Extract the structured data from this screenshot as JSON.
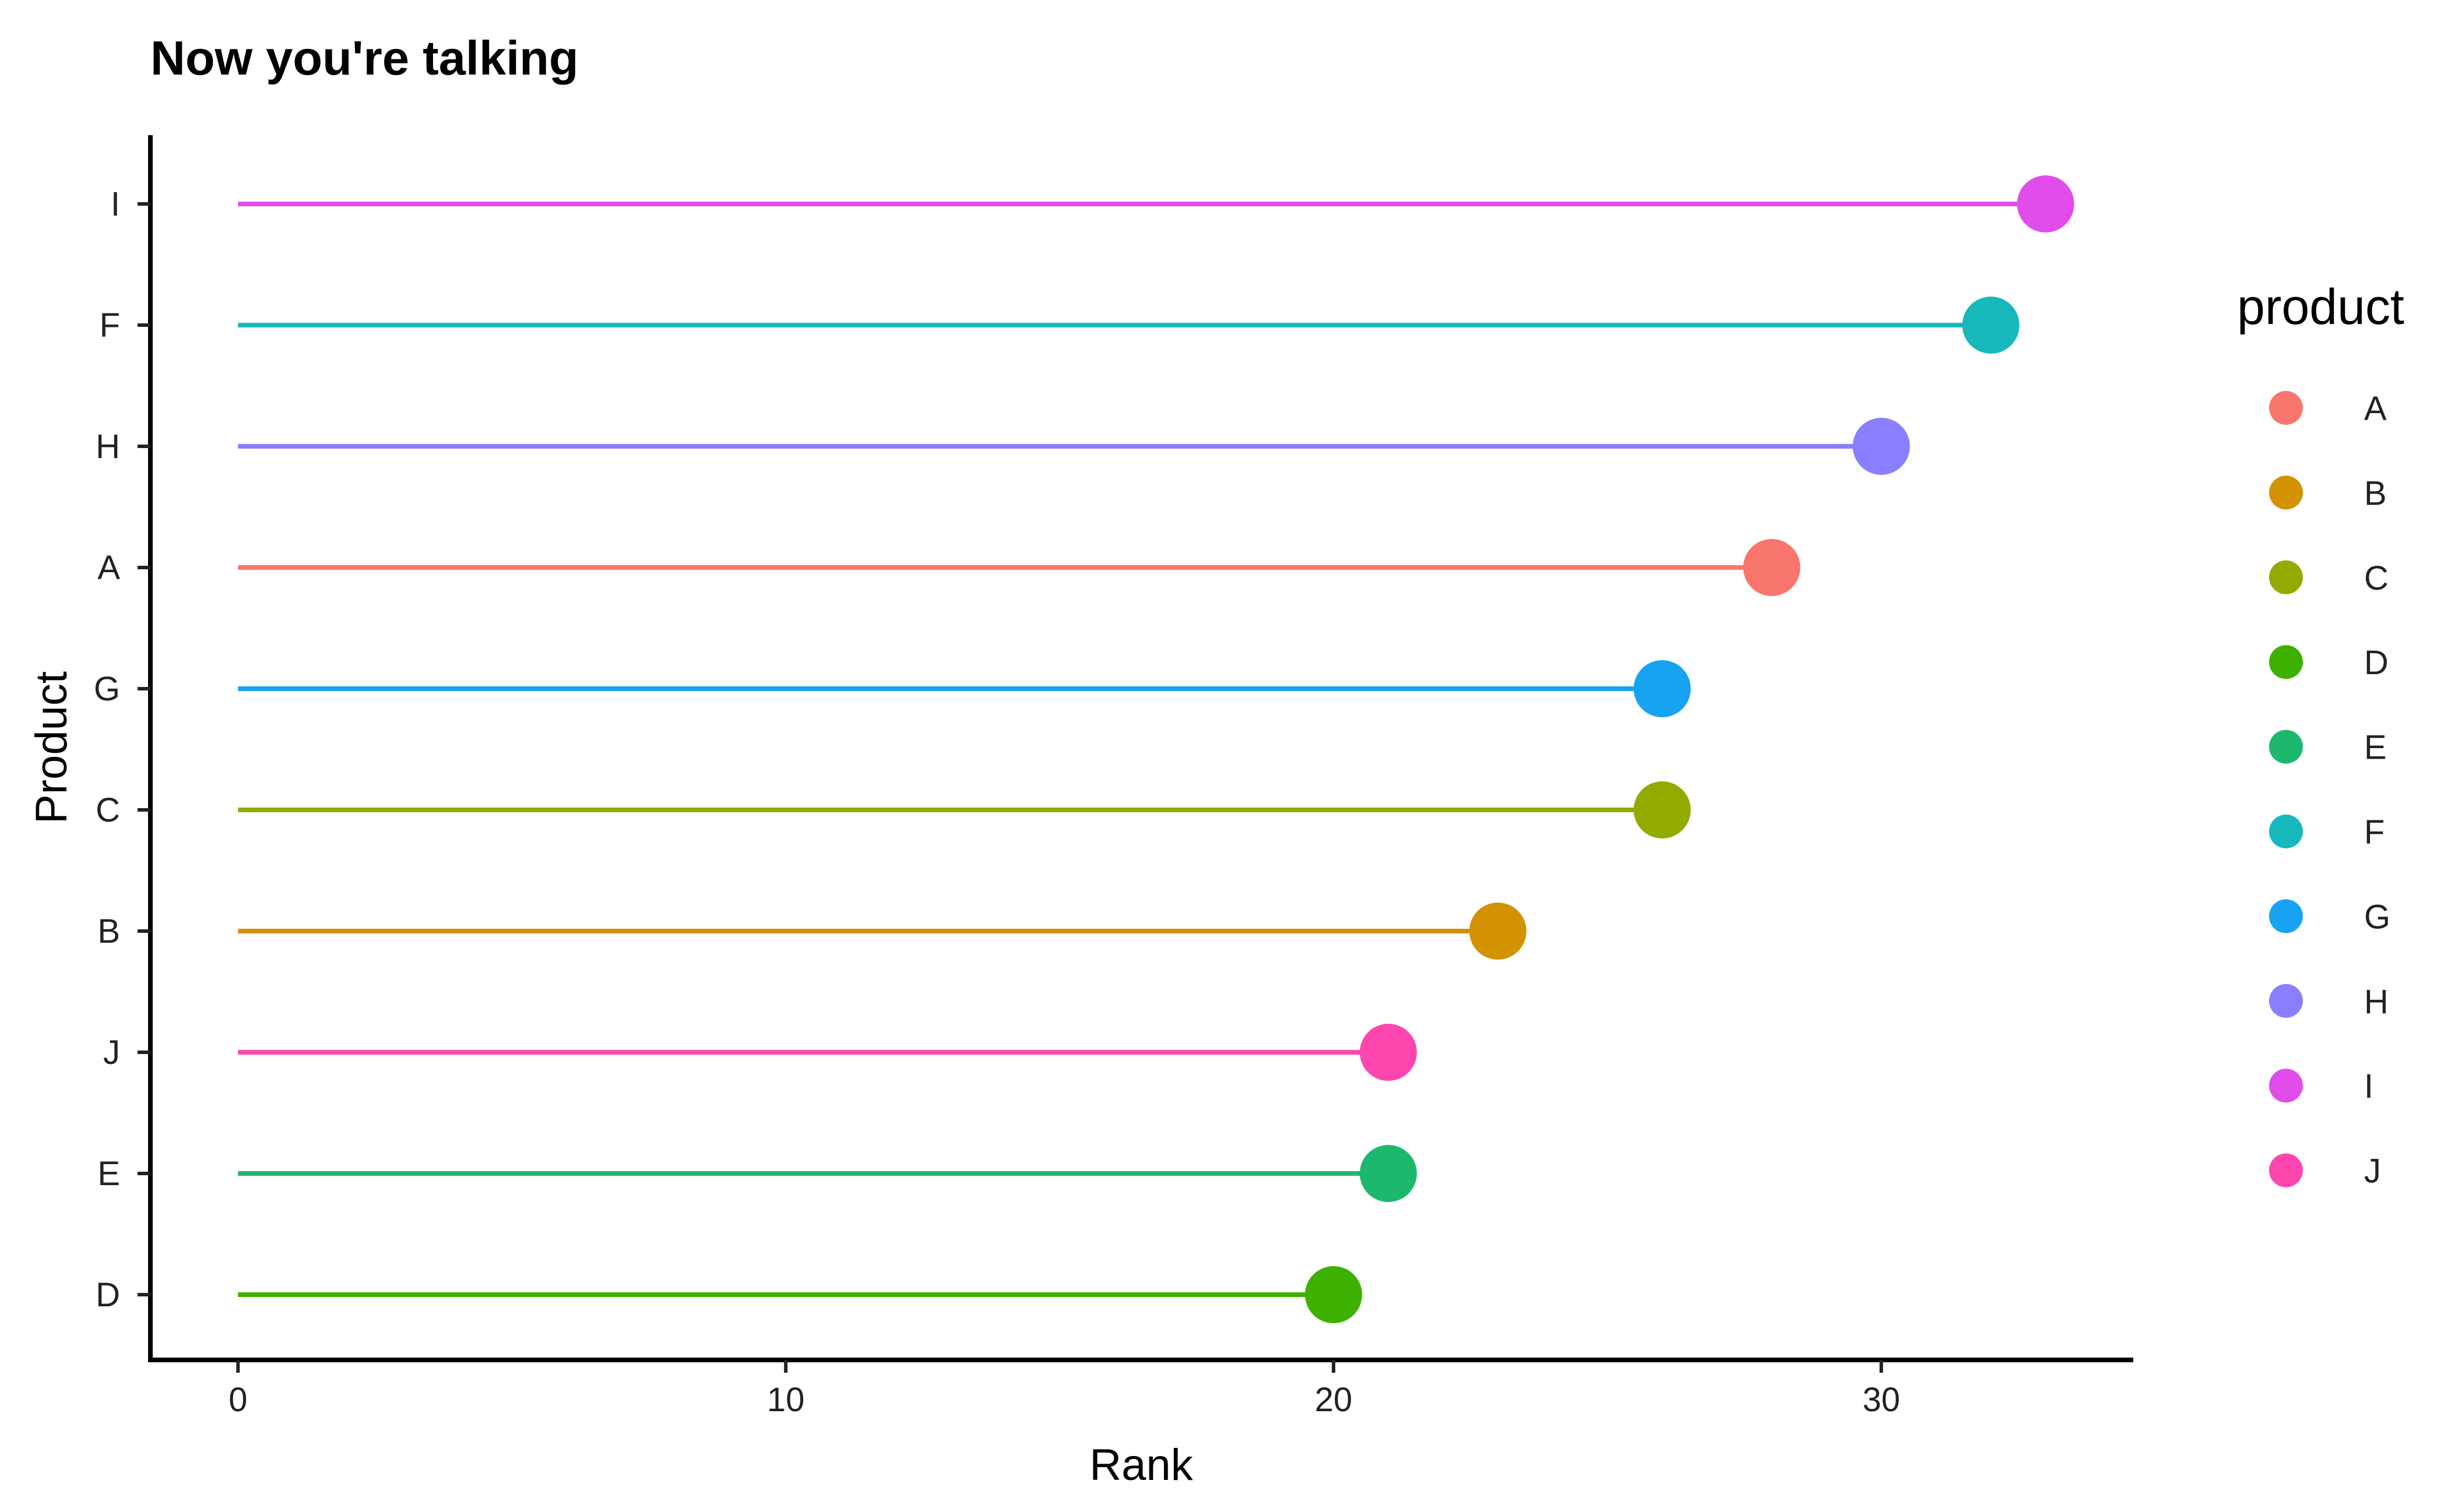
{
  "chart_data": {
    "type": "lollipop",
    "title": "Now you're talking",
    "xlabel": "Rank",
    "ylabel": "Product",
    "xlim": [
      -1.6,
      34.6
    ],
    "xticks": [
      0,
      10,
      20,
      30
    ],
    "grid": false,
    "legend": {
      "title": "product",
      "position": "right",
      "items": [
        {
          "label": "A",
          "color": "#F8766D"
        },
        {
          "label": "B",
          "color": "#D39200"
        },
        {
          "label": "C",
          "color": "#93AA00"
        },
        {
          "label": "D",
          "color": "#00BA38"
        },
        {
          "label": "E",
          "color": "#00C19F"
        },
        {
          "label": "F",
          "color": "#00B9E3"
        },
        {
          "label": "G",
          "color": "#00A5FF"
        },
        {
          "label": "H",
          "color": "#8B8CFF"
        },
        {
          "label": "I",
          "color": "#E76BF3"
        },
        {
          "label": "J",
          "color": "#FF62BC"
        }
      ]
    },
    "categories": [
      "I",
      "F",
      "H",
      "A",
      "G",
      "C",
      "B",
      "J",
      "E",
      "D"
    ],
    "values": [
      33,
      32,
      30,
      28,
      26,
      26,
      23,
      21,
      21,
      20
    ],
    "colors": {
      "A": "#F8766D",
      "B": "#D39200",
      "C": "#93AA00",
      "D": "#3DB000",
      "E": "#1DB86E",
      "F": "#17B8BC",
      "G": "#17A3F2",
      "H": "#8B7FFF",
      "I": "#E14DEB",
      "J": "#FF45AE"
    }
  }
}
